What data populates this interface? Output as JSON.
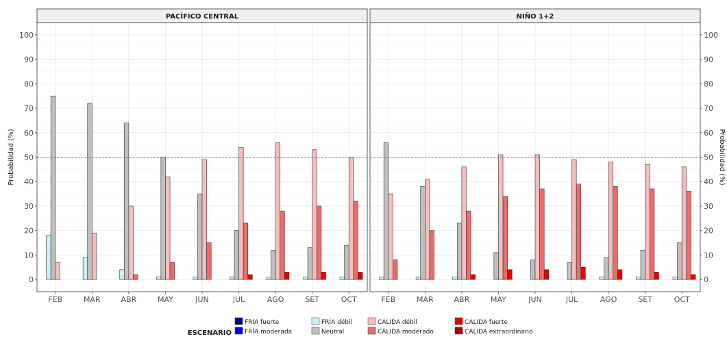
{
  "chart_data": {
    "type": "bar",
    "ylabel": "Probabilidad (%)",
    "ylim": [
      -5,
      105
    ],
    "yticks": [
      0,
      10,
      20,
      30,
      40,
      50,
      60,
      70,
      80,
      90,
      100
    ],
    "reference_line": 50,
    "categories": [
      "FEB",
      "MAR",
      "ABR",
      "MAY",
      "JUN",
      "JUL",
      "AGO",
      "SET",
      "OCT"
    ],
    "grid": true,
    "legend": {
      "title": "ESCENARIO",
      "position": "bottom",
      "items": [
        {
          "label": "FRÍA fuerte",
          "color": "#00008b"
        },
        {
          "label": "FRÍA moderada",
          "color": "#0000ff"
        },
        {
          "label": "FRÍA débil",
          "color": "#c9f1f5"
        },
        {
          "label": "Neutral",
          "color": "#bfbfbf"
        },
        {
          "label": "CÁLIDA débil",
          "color": "#f6bdbd"
        },
        {
          "label": "CÁLIDA moderado",
          "color": "#ee6b6b"
        },
        {
          "label": "CÁLIDA fuerte",
          "color": "#e60000"
        },
        {
          "label": "CÁLIDA extraordinario",
          "color": "#b30000"
        }
      ]
    },
    "panels": [
      {
        "title": "PACÍFICO CENTRAL",
        "series": [
          {
            "name": "FRÍA fuerte",
            "values": [
              0,
              0,
              0,
              0,
              0,
              0,
              0,
              0,
              0
            ]
          },
          {
            "name": "FRÍA moderada",
            "values": [
              0,
              0,
              0,
              0,
              0,
              0,
              0,
              0,
              0
            ]
          },
          {
            "name": "FRÍA débil",
            "values": [
              18,
              9,
              4,
              1,
              1,
              1,
              1,
              1,
              1
            ]
          },
          {
            "name": "Neutral",
            "values": [
              75,
              72,
              64,
              50,
              35,
              20,
              12,
              13,
              14
            ]
          },
          {
            "name": "CÁLIDA débil",
            "values": [
              7,
              19,
              30,
              42,
              49,
              54,
              56,
              53,
              50
            ]
          },
          {
            "name": "CÁLIDA moderado",
            "values": [
              0,
              0,
              2,
              7,
              15,
              23,
              28,
              30,
              32
            ]
          },
          {
            "name": "CÁLIDA fuerte",
            "values": [
              0,
              0,
              0,
              0,
              0,
              2,
              3,
              3,
              3
            ]
          },
          {
            "name": "CÁLIDA extraordinario",
            "values": [
              0,
              0,
              0,
              0,
              0,
              0,
              0,
              0,
              0
            ]
          }
        ]
      },
      {
        "title": "NIÑO 1+2",
        "series": [
          {
            "name": "FRÍA fuerte",
            "values": [
              0,
              0,
              0,
              0,
              0,
              0,
              0,
              0,
              0
            ]
          },
          {
            "name": "FRÍA moderada",
            "values": [
              0,
              0,
              0,
              0,
              0,
              0,
              0,
              0,
              0
            ]
          },
          {
            "name": "FRÍA débil",
            "values": [
              1,
              1,
              1,
              0,
              0,
              0,
              1,
              1,
              1
            ]
          },
          {
            "name": "Neutral",
            "values": [
              56,
              38,
              23,
              11,
              8,
              7,
              9,
              12,
              15
            ]
          },
          {
            "name": "CÁLIDA débil",
            "values": [
              35,
              41,
              46,
              51,
              51,
              49,
              48,
              47,
              46
            ]
          },
          {
            "name": "CÁLIDA moderado",
            "values": [
              8,
              20,
              28,
              34,
              37,
              39,
              38,
              37,
              36
            ]
          },
          {
            "name": "CÁLIDA fuerte",
            "values": [
              0,
              0,
              2,
              4,
              4,
              5,
              4,
              3,
              2
            ]
          },
          {
            "name": "CÁLIDA extraordinario",
            "values": [
              0,
              0,
              0,
              0,
              0,
              0,
              0,
              0,
              0
            ]
          }
        ]
      }
    ]
  }
}
